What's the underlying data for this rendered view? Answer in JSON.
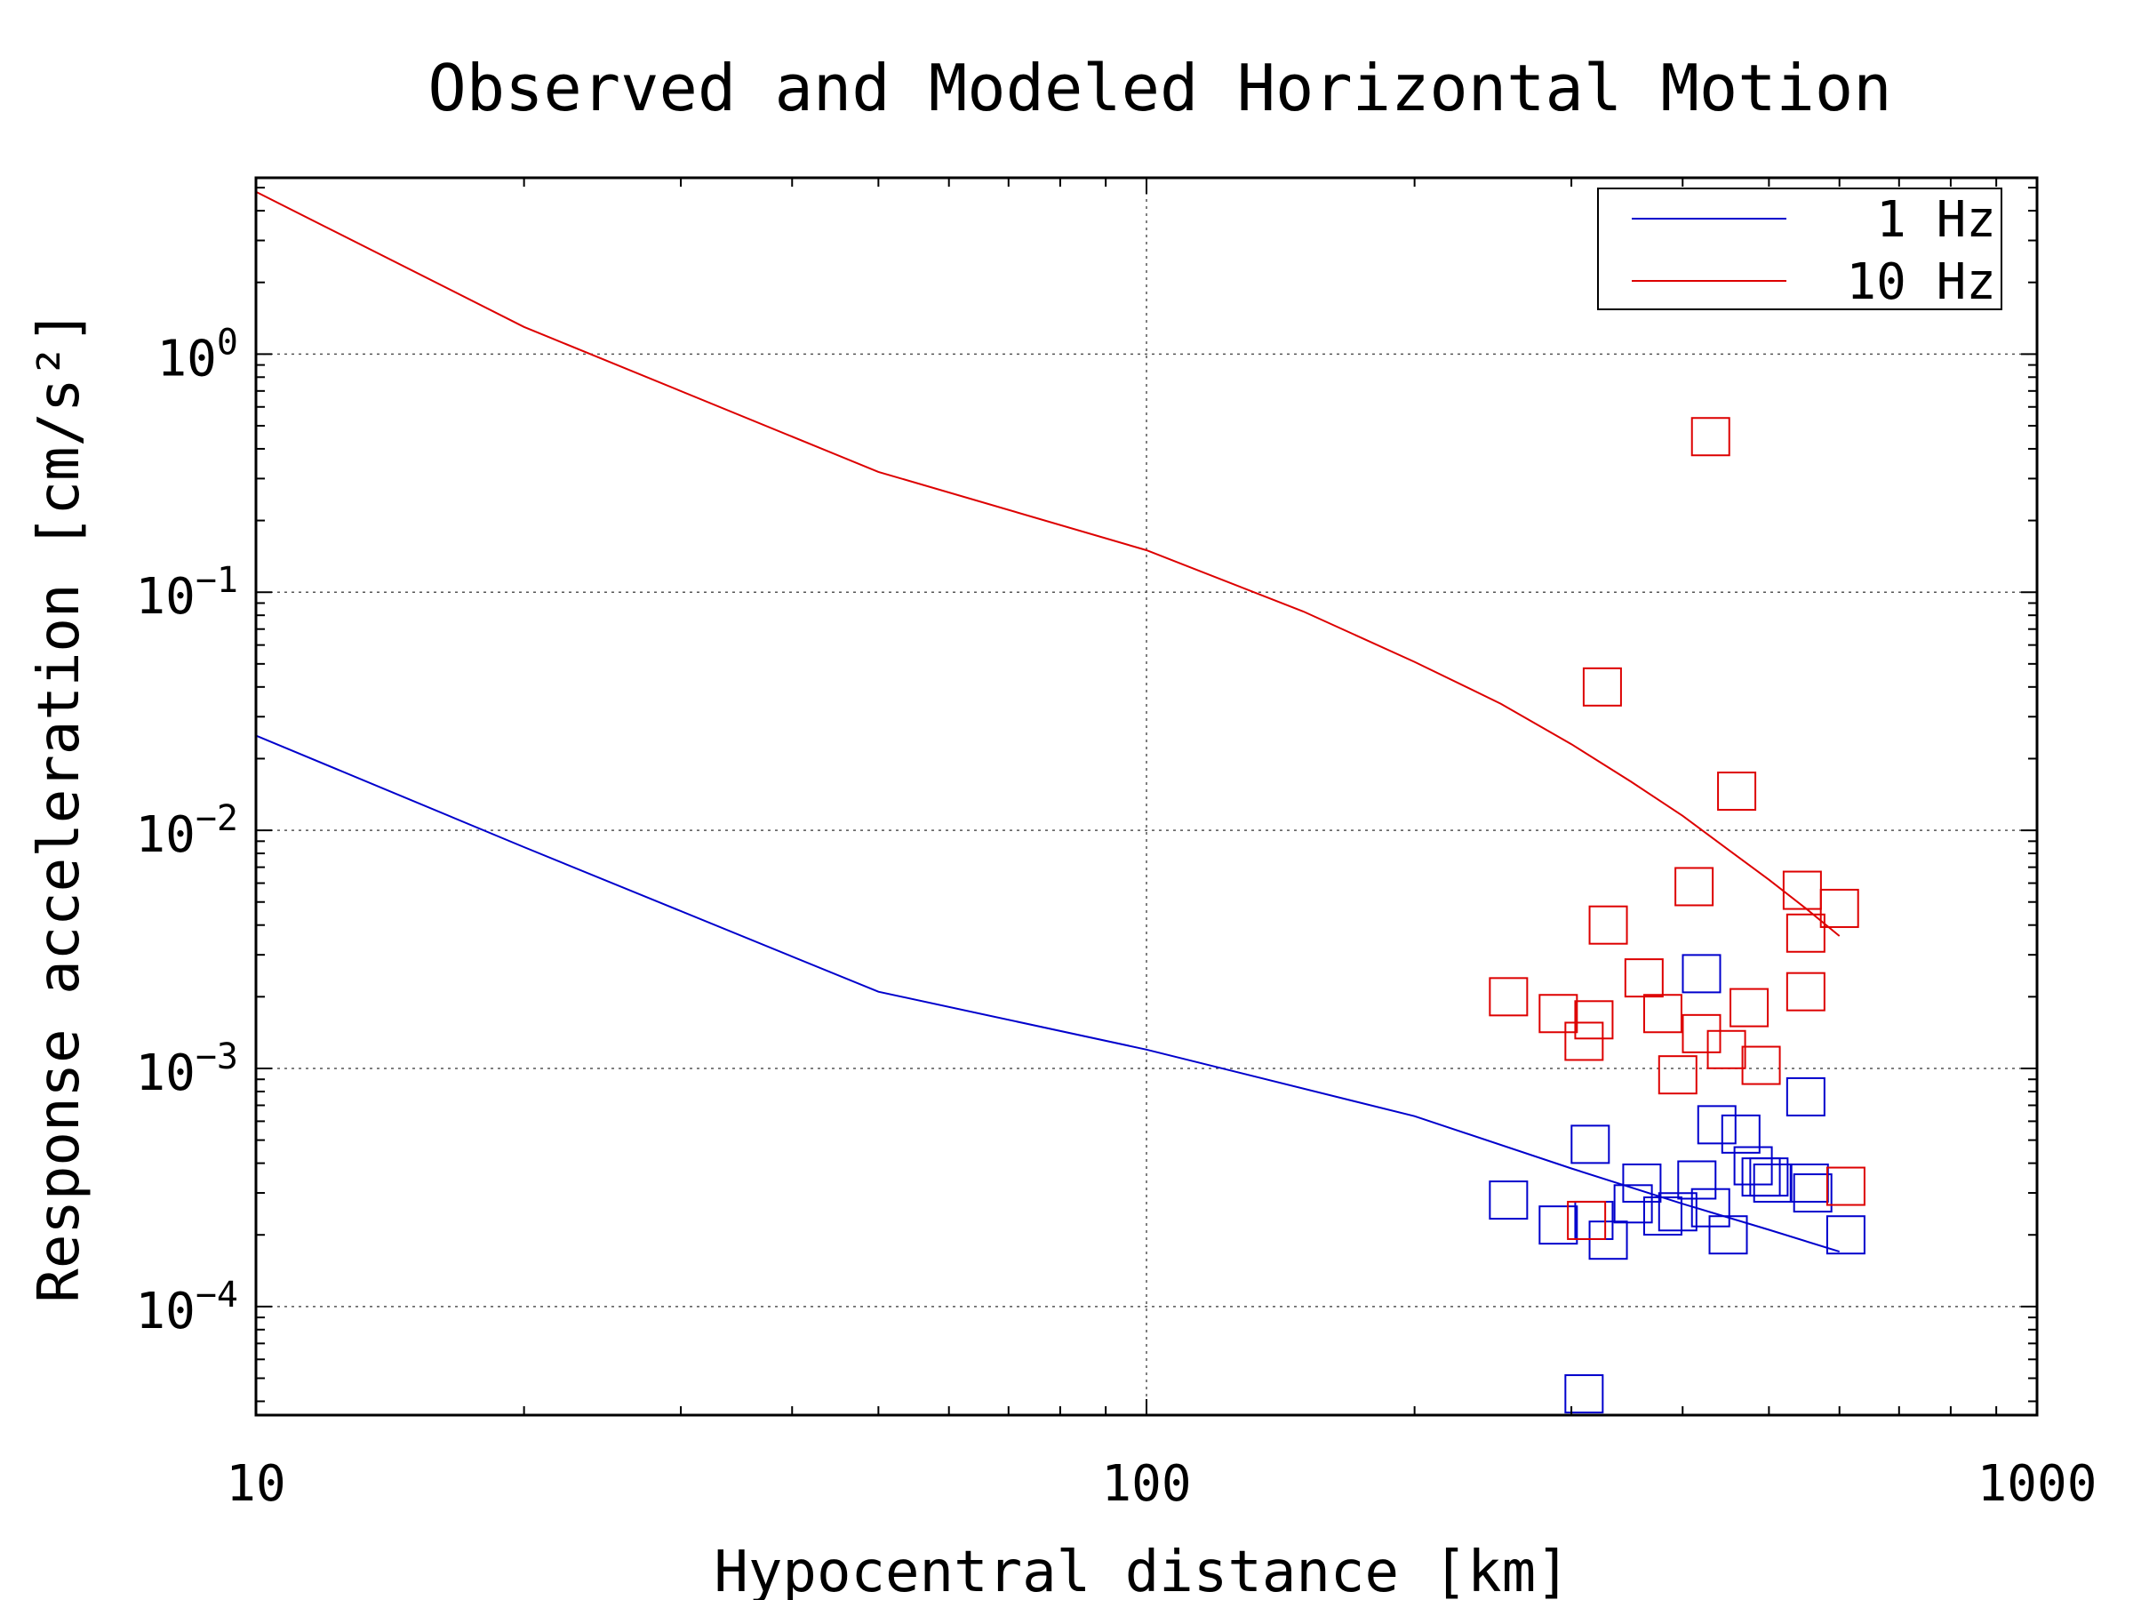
{
  "chart_data": {
    "type": "scatter",
    "title": "Observed and Modeled Horizontal Motion",
    "xlabel": "Hypocentral distance [km]",
    "ylabel": "Response acceleration [cm/s²]",
    "x_scale": "log",
    "y_scale": "log",
    "xlim": [
      10,
      1000
    ],
    "ylim": [
      3.5e-05,
      5.5
    ],
    "x_ticks": [
      {
        "value": 10,
        "label": "10"
      },
      {
        "value": 100,
        "label": "100"
      },
      {
        "value": 1000,
        "label": "1000"
      }
    ],
    "y_ticks": [
      {
        "value": 0.0001,
        "base": "10",
        "exp": "−4"
      },
      {
        "value": 0.001,
        "base": "10",
        "exp": "−3"
      },
      {
        "value": 0.01,
        "base": "10",
        "exp": "−2"
      },
      {
        "value": 0.1,
        "base": "10",
        "exp": "−1"
      },
      {
        "value": 1,
        "base": "10",
        "exp": "0"
      }
    ],
    "grid": "major, dotted",
    "legend": {
      "position": "top-right",
      "entries": [
        {
          "label": "1 Hz",
          "color": "#0000cc"
        },
        {
          "label": "10 Hz",
          "color": "#dd0000"
        }
      ]
    },
    "series": [
      {
        "name": "1 Hz",
        "color": "#0000cc",
        "model": {
          "x": [
            10,
            20,
            50,
            100,
            200,
            300,
            400,
            500,
            600
          ],
          "y": [
            0.025,
            0.0085,
            0.0021,
            0.0012,
            0.00063,
            0.00038,
            0.00027,
            0.00021,
            0.00017
          ]
        },
        "observed": {
          "x": [
            255,
            290,
            310,
            315,
            318,
            330,
            352,
            360,
            380,
            395,
            415,
            420,
            430,
            437,
            450,
            465,
            480,
            490,
            500,
            505,
            550,
            555,
            560,
            610
          ],
          "y": [
            0.00028,
            0.00022,
            4.3e-05,
            0.00048,
            0.00023,
            0.00019,
            0.00027,
            0.00033,
            0.00024,
            0.00025,
            0.00034,
            0.0025,
            0.00026,
            0.00058,
            0.0002,
            0.00053,
            0.00039,
            0.00035,
            0.00035,
            0.00033,
            0.00076,
            0.00033,
            0.0003,
            0.0002
          ]
        }
      },
      {
        "name": "10 Hz",
        "color": "#dd0000",
        "model": {
          "x": [
            10,
            20,
            50,
            100,
            150,
            200,
            250,
            300,
            350,
            400,
            450,
            500,
            550,
            600
          ],
          "y": [
            4.8,
            1.3,
            0.32,
            0.15,
            0.083,
            0.051,
            0.034,
            0.023,
            0.016,
            0.0115,
            0.0083,
            0.0062,
            0.0047,
            0.0036
          ]
        },
        "observed": {
          "x": [
            255,
            290,
            310,
            312,
            318,
            325,
            330,
            362,
            380,
            395,
            412,
            420,
            430,
            448,
            460,
            475,
            490,
            545,
            550,
            550,
            600,
            610
          ],
          "y": [
            0.002,
            0.0017,
            0.0013,
            0.00023,
            0.0016,
            0.04,
            0.004,
            0.0024,
            0.0017,
            0.00094,
            0.0058,
            0.0014,
            0.45,
            0.0012,
            0.0146,
            0.0018,
            0.00103,
            0.0056,
            0.0037,
            0.0021,
            0.0047,
            0.00032
          ]
        }
      }
    ]
  }
}
